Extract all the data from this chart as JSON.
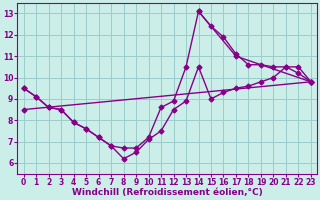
{
  "bg_color": "#cceee8",
  "grid_color": "#99cccc",
  "line_color": "#880088",
  "marker": "D",
  "markersize": 2.5,
  "linewidth": 1.0,
  "xlabel": "Windchill (Refroidissement éolien,°C)",
  "xlabel_fontsize": 6.5,
  "tick_fontsize": 5.5,
  "xlim": [
    -0.5,
    23.5
  ],
  "ylim": [
    5.5,
    13.5
  ],
  "yticks": [
    6,
    7,
    8,
    9,
    10,
    11,
    12,
    13
  ],
  "xticks": [
    0,
    1,
    2,
    3,
    4,
    5,
    6,
    7,
    8,
    9,
    10,
    11,
    12,
    13,
    14,
    15,
    16,
    17,
    18,
    19,
    20,
    21,
    22,
    23
  ],
  "series1_x": [
    0,
    1,
    2,
    3,
    4,
    5,
    6,
    7,
    8,
    9,
    10,
    11,
    12,
    13,
    14,
    15,
    16,
    17,
    18,
    19,
    20,
    21,
    22,
    23
  ],
  "series1_y": [
    9.5,
    9.1,
    8.6,
    8.5,
    7.9,
    7.6,
    7.2,
    6.8,
    6.2,
    6.5,
    7.1,
    7.5,
    8.5,
    8.9,
    10.5,
    9.0,
    9.3,
    9.5,
    9.6,
    9.8,
    10.0,
    10.5,
    10.5,
    9.8
  ],
  "series2_x": [
    0,
    1,
    2,
    3,
    4,
    5,
    6,
    7,
    8,
    9,
    10,
    11,
    12,
    13,
    14,
    15,
    16,
    17,
    18,
    19,
    20,
    21,
    22,
    23
  ],
  "series2_y": [
    9.5,
    9.1,
    8.6,
    8.5,
    7.9,
    7.6,
    7.2,
    6.8,
    6.7,
    6.7,
    7.2,
    8.6,
    8.9,
    10.5,
    13.1,
    12.4,
    11.9,
    11.1,
    10.6,
    10.6,
    10.5,
    10.5,
    10.2,
    9.8
  ],
  "series3_x": [
    0,
    23
  ],
  "series3_y": [
    8.5,
    9.8
  ],
  "series4_x": [
    14,
    17,
    23
  ],
  "series4_y": [
    13.1,
    11.0,
    9.8
  ]
}
